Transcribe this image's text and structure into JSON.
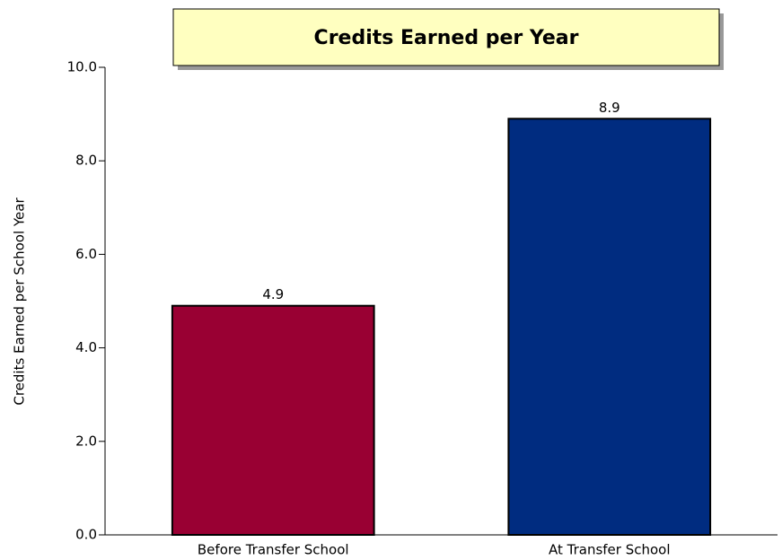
{
  "chart_data": {
    "type": "bar",
    "title": "Credits Earned per Year",
    "ylabel": "Credits Earned per School Year",
    "categories": [
      "Before Transfer School",
      "At Transfer School"
    ],
    "values": [
      4.9,
      8.9
    ],
    "colors": [
      "#990033",
      "#002c80"
    ],
    "ylim": [
      0,
      10
    ],
    "yticks": [
      {
        "value": 0,
        "label": "0.0"
      },
      {
        "value": 2,
        "label": "2.0"
      },
      {
        "value": 4,
        "label": "4.0"
      },
      {
        "value": 6,
        "label": "6.0"
      },
      {
        "value": 8,
        "label": "8.0"
      },
      {
        "value": 10,
        "label": "10.0"
      }
    ]
  }
}
